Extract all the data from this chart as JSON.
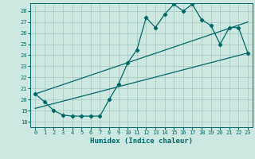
{
  "xlabel": "Humidex (Indice chaleur)",
  "bg_color": "#cce8e0",
  "grid_color": "#aaccc4",
  "line_color": "#006868",
  "xlim": [
    -0.5,
    23.5
  ],
  "ylim": [
    17.5,
    28.7
  ],
  "yticks": [
    18,
    19,
    20,
    21,
    22,
    23,
    24,
    25,
    26,
    27,
    28
  ],
  "xticks": [
    0,
    1,
    2,
    3,
    4,
    5,
    6,
    7,
    8,
    9,
    10,
    11,
    12,
    13,
    14,
    15,
    16,
    17,
    18,
    19,
    20,
    21,
    22,
    23
  ],
  "line1_x": [
    0,
    1,
    2,
    3,
    4,
    5,
    6,
    7,
    8,
    9,
    10,
    11,
    12,
    13,
    14,
    15,
    16,
    17,
    18,
    19,
    20,
    21,
    22,
    23
  ],
  "line1_y": [
    20.5,
    19.8,
    19.0,
    18.6,
    18.5,
    18.5,
    18.5,
    18.5,
    20.0,
    21.4,
    23.3,
    24.5,
    27.4,
    26.5,
    27.7,
    28.6,
    28.0,
    28.6,
    27.2,
    26.7,
    25.0,
    26.5,
    26.5,
    24.2
  ],
  "line2_x": [
    0,
    23
  ],
  "line2_y": [
    19.2,
    24.2
  ],
  "line3_x": [
    0,
    23
  ],
  "line3_y": [
    20.5,
    27.0
  ]
}
